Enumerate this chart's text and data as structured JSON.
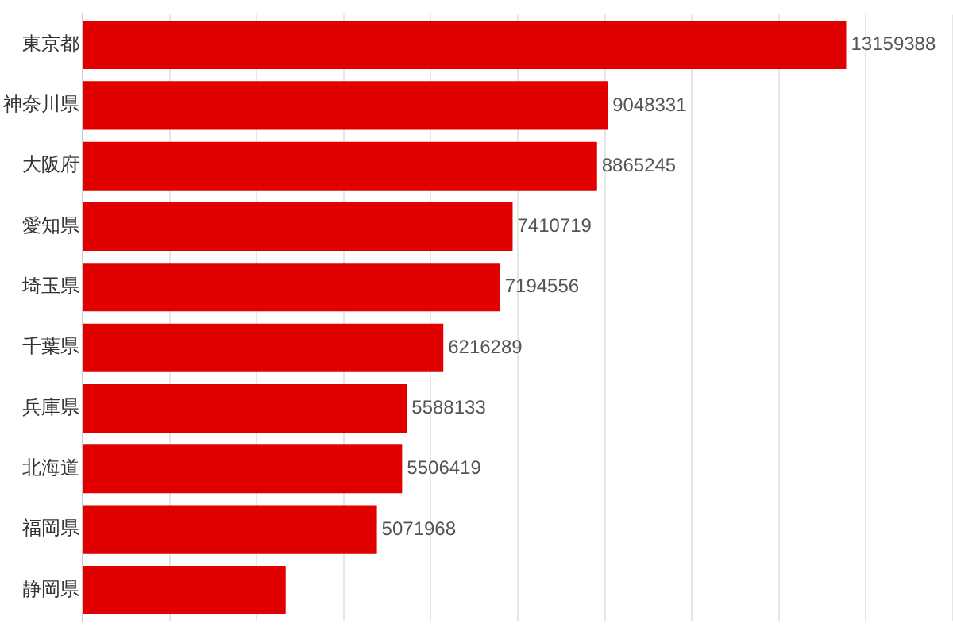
{
  "chart_data": {
    "type": "bar",
    "orientation": "horizontal",
    "categories": [
      "東京都",
      "神奈川県",
      "大阪府",
      "愛知県",
      "埼玉県",
      "千葉県",
      "兵庫県",
      "北海道",
      "福岡県",
      "静岡県"
    ],
    "values": [
      13159388,
      9048331,
      8865245,
      7410719,
      7194556,
      6216289,
      5588133,
      5506419,
      5071968,
      3500000
    ],
    "value_labels": [
      "13159388",
      "9048331",
      "8865245",
      "7410719",
      "7194556",
      "6216289",
      "5588133",
      "5506419",
      "5071968",
      null
    ],
    "color": "#e00000",
    "xlim": [
      0,
      15000000
    ],
    "xticks": [
      {
        "value": 0,
        "label": null
      },
      {
        "value": 1500000,
        "label": null
      },
      {
        "value": 3000000,
        "label": null
      },
      {
        "value": 4500000,
        "label": null
      },
      {
        "value": 6000000,
        "label": null
      },
      {
        "value": 7500000,
        "label": null
      },
      {
        "value": 9000000,
        "label": null
      },
      {
        "value": 10500000,
        "label": null
      },
      {
        "value": 12000000,
        "label": null
      },
      {
        "value": 13500000,
        "label": null
      },
      {
        "value": 15000000,
        "label": null
      }
    ],
    "tick_labels": "y",
    "grid": "x",
    "legend": false
  }
}
